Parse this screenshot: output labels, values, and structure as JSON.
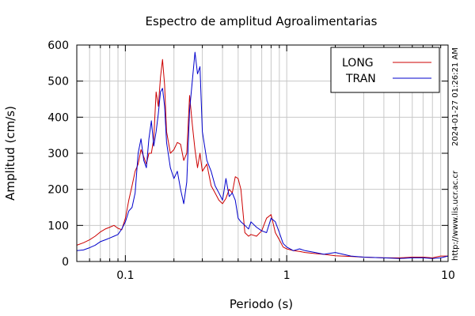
{
  "chart_data": {
    "type": "line",
    "title": "Espectro de amplitud Agroalimentarias",
    "xlabel": "Periodo (s)",
    "ylabel": "Amplitud (cm/s)",
    "x_scale": "log",
    "xlim": [
      0.05,
      10
    ],
    "ylim": [
      0,
      600
    ],
    "x_ticks": [
      {
        "value": 0.1,
        "label": "0.1"
      },
      {
        "value": 1,
        "label": "1"
      },
      {
        "value": 10,
        "label": "10"
      }
    ],
    "y_ticks": [
      {
        "value": 0,
        "label": "0"
      },
      {
        "value": 100,
        "label": "100"
      },
      {
        "value": 200,
        "label": "200"
      },
      {
        "value": 300,
        "label": "300"
      },
      {
        "value": 400,
        "label": "400"
      },
      {
        "value": 500,
        "label": "500"
      },
      {
        "value": 600,
        "label": "600"
      }
    ],
    "grid": true,
    "legend_position": "top-right",
    "series": [
      {
        "name": "LONG",
        "color": "#cc0000",
        "x": [
          0.05,
          0.055,
          0.06,
          0.065,
          0.07,
          0.075,
          0.08,
          0.085,
          0.09,
          0.095,
          0.1,
          0.105,
          0.11,
          0.115,
          0.12,
          0.125,
          0.13,
          0.135,
          0.14,
          0.145,
          0.15,
          0.155,
          0.16,
          0.165,
          0.17,
          0.175,
          0.18,
          0.19,
          0.2,
          0.21,
          0.22,
          0.23,
          0.24,
          0.25,
          0.26,
          0.27,
          0.28,
          0.29,
          0.3,
          0.32,
          0.34,
          0.36,
          0.38,
          0.4,
          0.42,
          0.44,
          0.46,
          0.48,
          0.5,
          0.52,
          0.55,
          0.58,
          0.6,
          0.65,
          0.7,
          0.75,
          0.8,
          0.85,
          0.9,
          0.95,
          1,
          1.1,
          1.2,
          1.3,
          1.5,
          1.7,
          2,
          2.5,
          3,
          4,
          5,
          6,
          7,
          8,
          9,
          10
        ],
        "y": [
          45,
          52,
          60,
          70,
          82,
          90,
          95,
          100,
          92,
          88,
          120,
          170,
          210,
          250,
          270,
          310,
          290,
          270,
          300,
          300,
          340,
          470,
          430,
          510,
          560,
          490,
          360,
          300,
          310,
          330,
          325,
          280,
          300,
          460,
          380,
          310,
          260,
          300,
          250,
          270,
          210,
          190,
          170,
          160,
          175,
          200,
          190,
          235,
          230,
          200,
          80,
          70,
          75,
          70,
          85,
          120,
          130,
          80,
          60,
          40,
          35,
          30,
          28,
          25,
          22,
          20,
          16,
          14,
          12,
          10,
          10,
          12,
          12,
          10,
          15,
          15
        ]
      },
      {
        "name": "TRAN",
        "color": "#0000cc",
        "x": [
          0.05,
          0.055,
          0.06,
          0.065,
          0.07,
          0.075,
          0.08,
          0.085,
          0.09,
          0.095,
          0.1,
          0.105,
          0.11,
          0.115,
          0.12,
          0.125,
          0.13,
          0.135,
          0.14,
          0.145,
          0.15,
          0.155,
          0.16,
          0.165,
          0.17,
          0.175,
          0.18,
          0.19,
          0.2,
          0.21,
          0.22,
          0.23,
          0.24,
          0.25,
          0.26,
          0.27,
          0.28,
          0.29,
          0.3,
          0.32,
          0.34,
          0.36,
          0.38,
          0.4,
          0.42,
          0.44,
          0.46,
          0.48,
          0.5,
          0.52,
          0.55,
          0.58,
          0.6,
          0.65,
          0.7,
          0.75,
          0.8,
          0.85,
          0.9,
          0.95,
          1,
          1.1,
          1.2,
          1.3,
          1.5,
          1.7,
          2,
          2.5,
          3,
          4,
          5,
          6,
          7,
          8,
          9,
          10
        ],
        "y": [
          30,
          32,
          38,
          45,
          55,
          60,
          65,
          70,
          75,
          90,
          110,
          140,
          150,
          190,
          300,
          340,
          280,
          260,
          340,
          390,
          320,
          360,
          410,
          470,
          480,
          430,
          330,
          260,
          230,
          250,
          200,
          160,
          220,
          420,
          500,
          580,
          520,
          540,
          360,
          280,
          250,
          210,
          190,
          170,
          230,
          180,
          190,
          170,
          120,
          110,
          100,
          90,
          110,
          95,
          85,
          80,
          120,
          110,
          80,
          50,
          40,
          30,
          35,
          30,
          25,
          20,
          25,
          15,
          12,
          10,
          8,
          10,
          10,
          8,
          10,
          15
        ]
      }
    ],
    "side_text": [
      {
        "text": "2024-01-27 01:26:21 AM"
      },
      {
        "text": "http://www.lis.ucr.ac.cr"
      }
    ]
  }
}
